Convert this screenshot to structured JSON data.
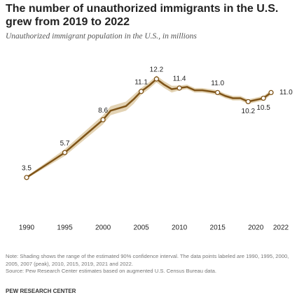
{
  "chart_data": {
    "type": "line",
    "title": "The number of unauthorized immigrants in the U.S. grew from 2019 to 2022",
    "subtitle": "Unauthorized immigrant population in the U.S., in millions",
    "x": [
      1990,
      1995,
      2000,
      2001,
      2002,
      2003,
      2004,
      2005,
      2006,
      2007,
      2008,
      2009,
      2010,
      2011,
      2012,
      2013,
      2014,
      2015,
      2016,
      2017,
      2018,
      2019,
      2021,
      2022
    ],
    "series": [
      {
        "color": "#7f5418",
        "values": [
          3.5,
          5.7,
          8.6,
          9.4,
          9.6,
          9.8,
          10.4,
          11.1,
          11.6,
          12.2,
          11.7,
          11.3,
          11.4,
          11.5,
          11.2,
          11.2,
          11.1,
          11.0,
          10.7,
          10.5,
          10.5,
          10.2,
          10.5,
          11.0
        ],
        "value_labels": [
          "3.5",
          "5.7",
          "8.6",
          null,
          null,
          null,
          null,
          "11.1",
          null,
          "12.2",
          null,
          null,
          "11.4",
          null,
          null,
          null,
          null,
          "11.0",
          null,
          null,
          null,
          "10.2",
          "10.5",
          "11.0"
        ],
        "ci_lower": [
          3.4,
          5.4,
          8.2,
          9.0,
          9.2,
          9.4,
          10.0,
          10.8,
          11.3,
          11.9,
          11.4,
          11.0,
          11.2,
          11.3,
          11.0,
          11.0,
          10.9,
          10.8,
          10.5,
          10.3,
          10.3,
          10.0,
          10.3,
          10.8
        ],
        "ci_upper": [
          3.6,
          6.0,
          9.0,
          9.8,
          10.0,
          10.2,
          10.8,
          11.4,
          11.9,
          12.5,
          12.0,
          11.6,
          11.6,
          11.7,
          11.4,
          11.4,
          11.3,
          11.2,
          10.9,
          10.7,
          10.7,
          10.4,
          10.7,
          11.2
        ],
        "band_color": "#e3d3b4"
      }
    ],
    "xlim": [
      1990,
      2022
    ],
    "xticks": [
      1990,
      1995,
      2000,
      2005,
      2010,
      2015,
      2020,
      2022
    ],
    "ylim": [
      3,
      13
    ],
    "note": "Note: Shading shows the range of the estimated 90% confidence interval. The data points labeled are 1990, 1995, 2000, 2005, 2007 (peak), 2010, 2015, 2019, 2021 and 2022.",
    "source": "Source: Pew Research Center estimates based on augmented U.S. Census Bureau data.",
    "brand": "PEW RESEARCH CENTER"
  }
}
